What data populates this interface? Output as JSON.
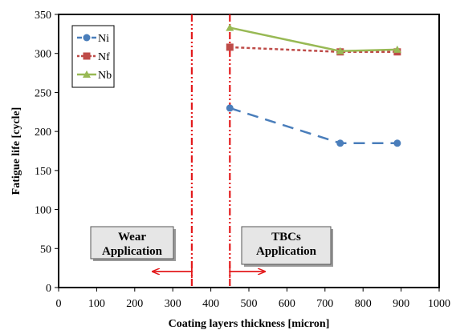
{
  "chart_data": {
    "type": "line",
    "xlabel": "Coating layers thickness [micron]",
    "ylabel": "Fatigue life [cycle]",
    "xlim": [
      0,
      1000
    ],
    "ylim": [
      0,
      350
    ],
    "xticks": [
      0,
      100,
      200,
      300,
      400,
      500,
      600,
      700,
      800,
      900,
      1000
    ],
    "yticks": [
      0,
      50,
      100,
      150,
      200,
      250,
      300,
      350
    ],
    "grid": false,
    "legend_position": "top-left",
    "series": [
      {
        "name": "Ni",
        "color": "#4a7ebb",
        "line_style": "dashed",
        "marker": "circle",
        "x": [
          450,
          740,
          890
        ],
        "y": [
          230,
          185,
          185
        ]
      },
      {
        "name": "Nf",
        "color": "#be4b48",
        "line_style": "dotted",
        "marker": "square",
        "x": [
          450,
          740,
          890
        ],
        "y": [
          308,
          302,
          302
        ]
      },
      {
        "name": "Nb",
        "color": "#98b954",
        "line_style": "solid",
        "marker": "triangle",
        "x": [
          450,
          740,
          890
        ],
        "y": [
          333,
          303,
          305
        ]
      }
    ],
    "reference_lines": [
      {
        "x": 350,
        "color": "#e31a1c"
      },
      {
        "x": 450,
        "color": "#e31a1c"
      }
    ],
    "annotations": [
      {
        "text_lines": [
          "Wear",
          "Application"
        ],
        "arrow": "left"
      },
      {
        "text_lines": [
          "TBCs",
          "Application"
        ],
        "arrow": "right"
      }
    ]
  }
}
